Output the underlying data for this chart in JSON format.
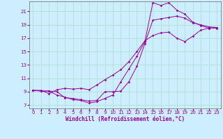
{
  "background_color": "#cceeff",
  "grid_color": "#aaddcc",
  "line_color": "#990099",
  "xlabel": "Windchill (Refroidissement éolien,°C)",
  "ylabel_ticks": [
    7,
    9,
    11,
    13,
    15,
    17,
    19,
    21
  ],
  "xlabel_ticks": [
    0,
    1,
    2,
    3,
    4,
    5,
    6,
    7,
    8,
    9,
    10,
    11,
    12,
    13,
    14,
    15,
    16,
    17,
    18,
    19,
    20,
    21,
    22,
    23
  ],
  "xlim": [
    -0.5,
    23.5
  ],
  "ylim": [
    6.5,
    22.5
  ],
  "line1_x": [
    0,
    1,
    2,
    3,
    4,
    5,
    6,
    7,
    8,
    9,
    10,
    11,
    12,
    13,
    14,
    15,
    16,
    17,
    18,
    19,
    20,
    21,
    22,
    23
  ],
  "line1_y": [
    9.2,
    9.1,
    9.1,
    9.0,
    8.1,
    8.0,
    7.8,
    7.6,
    7.7,
    9.0,
    9.0,
    9.1,
    10.5,
    12.8,
    16.2,
    19.7,
    19.9,
    20.1,
    20.3,
    20.0,
    19.3,
    19.0,
    18.7,
    18.6
  ],
  "line2_x": [
    0,
    1,
    2,
    3,
    4,
    5,
    6,
    7,
    8,
    9,
    10,
    11,
    12,
    13,
    14,
    15,
    16,
    17,
    18,
    19,
    20,
    21,
    22,
    23
  ],
  "line2_y": [
    9.2,
    9.1,
    9.1,
    8.5,
    8.2,
    7.8,
    7.7,
    7.3,
    7.5,
    8.0,
    8.5,
    10.5,
    12.4,
    14.3,
    16.5,
    22.3,
    21.9,
    22.3,
    21.2,
    20.6,
    19.4,
    18.9,
    18.5,
    18.5
  ],
  "line3_x": [
    0,
    1,
    2,
    3,
    4,
    5,
    6,
    7,
    8,
    9,
    10,
    11,
    12,
    13,
    14,
    15,
    16,
    17,
    18,
    19,
    20,
    21,
    22,
    23
  ],
  "line3_y": [
    9.2,
    9.2,
    8.7,
    9.3,
    9.5,
    9.4,
    9.5,
    9.3,
    10.0,
    10.8,
    11.5,
    12.3,
    13.5,
    15.0,
    16.6,
    17.4,
    17.8,
    17.9,
    17.0,
    16.5,
    17.3,
    18.2,
    18.5,
    18.6
  ],
  "tick_fontsize": 5,
  "xlabel_fontsize": 5.5,
  "marker_size": 1.5,
  "line_width": 0.7
}
